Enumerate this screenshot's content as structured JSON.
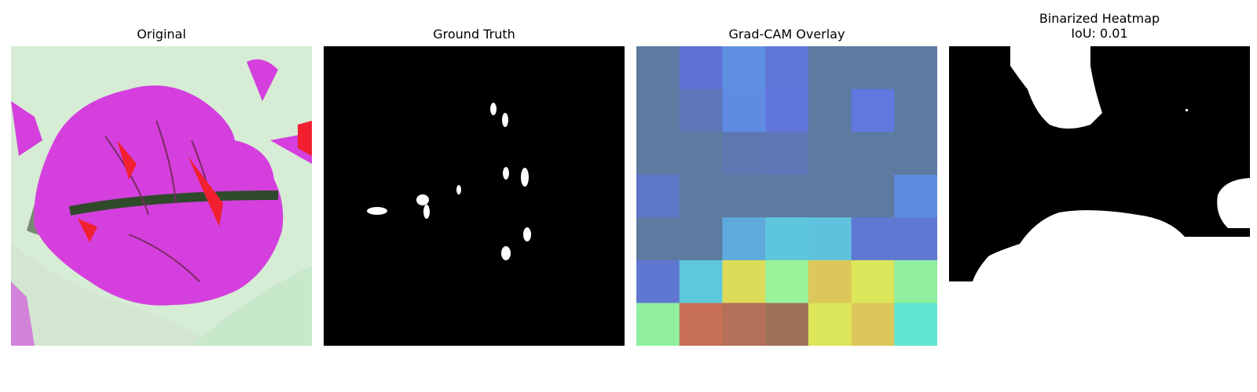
{
  "panels": {
    "original": {
      "title": "Original"
    },
    "ground_truth": {
      "title": "Ground Truth"
    },
    "gradcam": {
      "title": "Grad-CAM Overlay",
      "grid": [
        [
          "#5d7aa0",
          "#5e72d6",
          "#5f8fe0",
          "#6077d8",
          "#5d7aa0",
          "#5d7aa0",
          "#5d7aa0"
        ],
        [
          "#5d7aa0",
          "#5e77b8",
          "#5f8ce2",
          "#6076dc",
          "#5d7aa0",
          "#6078e0",
          "#5d7aa0"
        ],
        [
          "#5d7aa0",
          "#5d7aa0",
          "#5e77b0",
          "#5f76b6",
          "#5d7aa0",
          "#5d7aa0",
          "#5d7aa0"
        ],
        [
          "#5f77c8",
          "#5d7aa0",
          "#5d7aa0",
          "#5d7aa0",
          "#5d7aa0",
          "#5d7aa0",
          "#5e8ce2"
        ],
        [
          "#5d7aa0",
          "#5d7aa0",
          "#5eaadc",
          "#5ec6dc",
          "#5ec2dc",
          "#5f78d2",
          "#5f78d2"
        ],
        [
          "#6077d2",
          "#5ec7dc",
          "#dcdc5a",
          "#9af39a",
          "#dcc85a",
          "#dce65a",
          "#90f0a0"
        ],
        [
          "#90f0a0",
          "#c87058",
          "#b47058",
          "#a07058",
          "#dce65a",
          "#dcc85a",
          "#5ee6d0"
        ]
      ]
    },
    "binarized": {
      "title_line1": "Binarized Heatmap",
      "title_line2": "IoU: 0.01",
      "iou": 0.01
    }
  }
}
